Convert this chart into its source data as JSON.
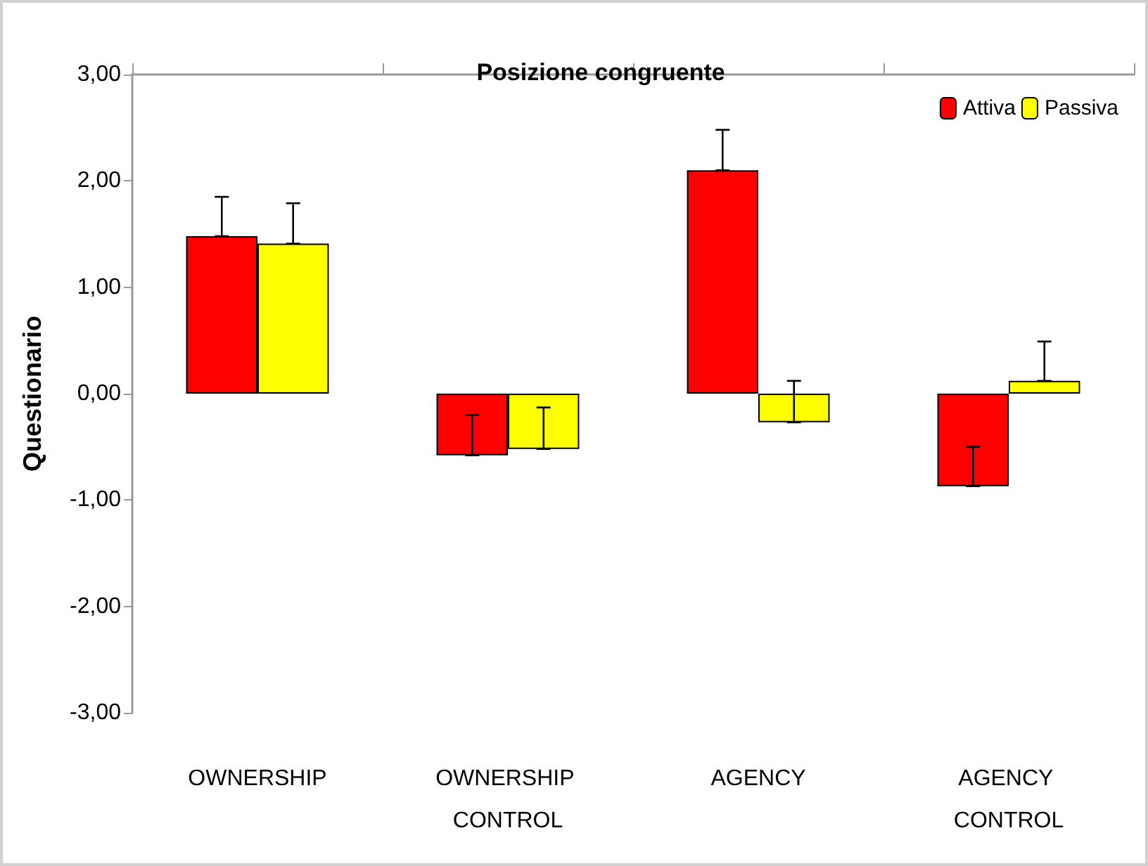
{
  "chart_data": {
    "type": "bar",
    "title": "Posizione congruente",
    "ylabel": "Questionario",
    "categories": [
      "OWNERSHIP",
      "OWNERSHIP CONTROL",
      "AGENCY",
      "AGENCY CONTROL"
    ],
    "series": [
      {
        "name": "Attiva",
        "color": "#ff0000",
        "values": [
          1.48,
          -0.58,
          2.1,
          -0.87
        ],
        "errors": [
          [
            1.48,
            1.85
          ],
          [
            -0.58,
            -0.2
          ],
          [
            2.1,
            2.48
          ],
          [
            -0.87,
            -0.5
          ]
        ]
      },
      {
        "name": "Passiva",
        "color": "#ffff00",
        "values": [
          1.41,
          -0.52,
          -0.27,
          0.12
        ],
        "errors": [
          [
            1.41,
            1.79
          ],
          [
            -0.52,
            -0.13
          ],
          [
            -0.27,
            0.12
          ],
          [
            0.12,
            0.49
          ]
        ]
      }
    ],
    "ylim": [
      -3,
      3
    ],
    "yticks": [
      {
        "value": -3,
        "label": "-3,00"
      },
      {
        "value": -2,
        "label": "-2,00"
      },
      {
        "value": -1,
        "label": "-1,00"
      },
      {
        "value": 0,
        "label": "0,00"
      },
      {
        "value": 1,
        "label": "1,00"
      },
      {
        "value": 2,
        "label": "2,00"
      },
      {
        "value": 3,
        "label": "3,00"
      }
    ],
    "grid": false,
    "legend": "top right"
  }
}
